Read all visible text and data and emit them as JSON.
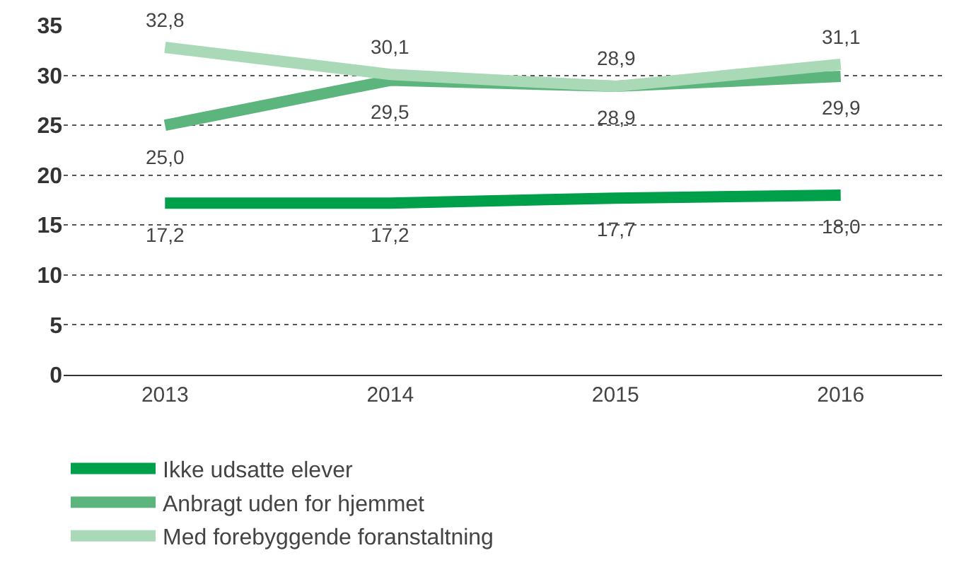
{
  "chart_data": {
    "type": "line",
    "categories": [
      "2013",
      "2014",
      "2015",
      "2016"
    ],
    "series": [
      {
        "name": "Ikke udsatte elever",
        "color": "#00a04b",
        "values": [
          17.2,
          17.2,
          17.7,
          18.0
        ],
        "value_labels": [
          "17,2",
          "17,2",
          "17,7",
          "18,0"
        ]
      },
      {
        "name": "Anbragt uden for hjemmet",
        "color": "#5cb57c",
        "values": [
          25.0,
          29.5,
          28.9,
          29.9
        ],
        "value_labels": [
          "25,0",
          "29,5",
          "28,9",
          "29,9"
        ]
      },
      {
        "name": "Med forebyggende foranstaltning",
        "color": "#a9d9b6",
        "values": [
          32.8,
          30.1,
          28.9,
          31.1
        ],
        "value_labels": [
          "32,8",
          "30,1",
          "28,9",
          "31,1"
        ]
      }
    ],
    "ylim": [
      0,
      35
    ],
    "yticks": [
      0,
      5,
      10,
      15,
      20,
      25,
      30,
      35
    ],
    "grid": "y",
    "legend": "bottom left",
    "marker": "none",
    "line_style": "solid"
  }
}
